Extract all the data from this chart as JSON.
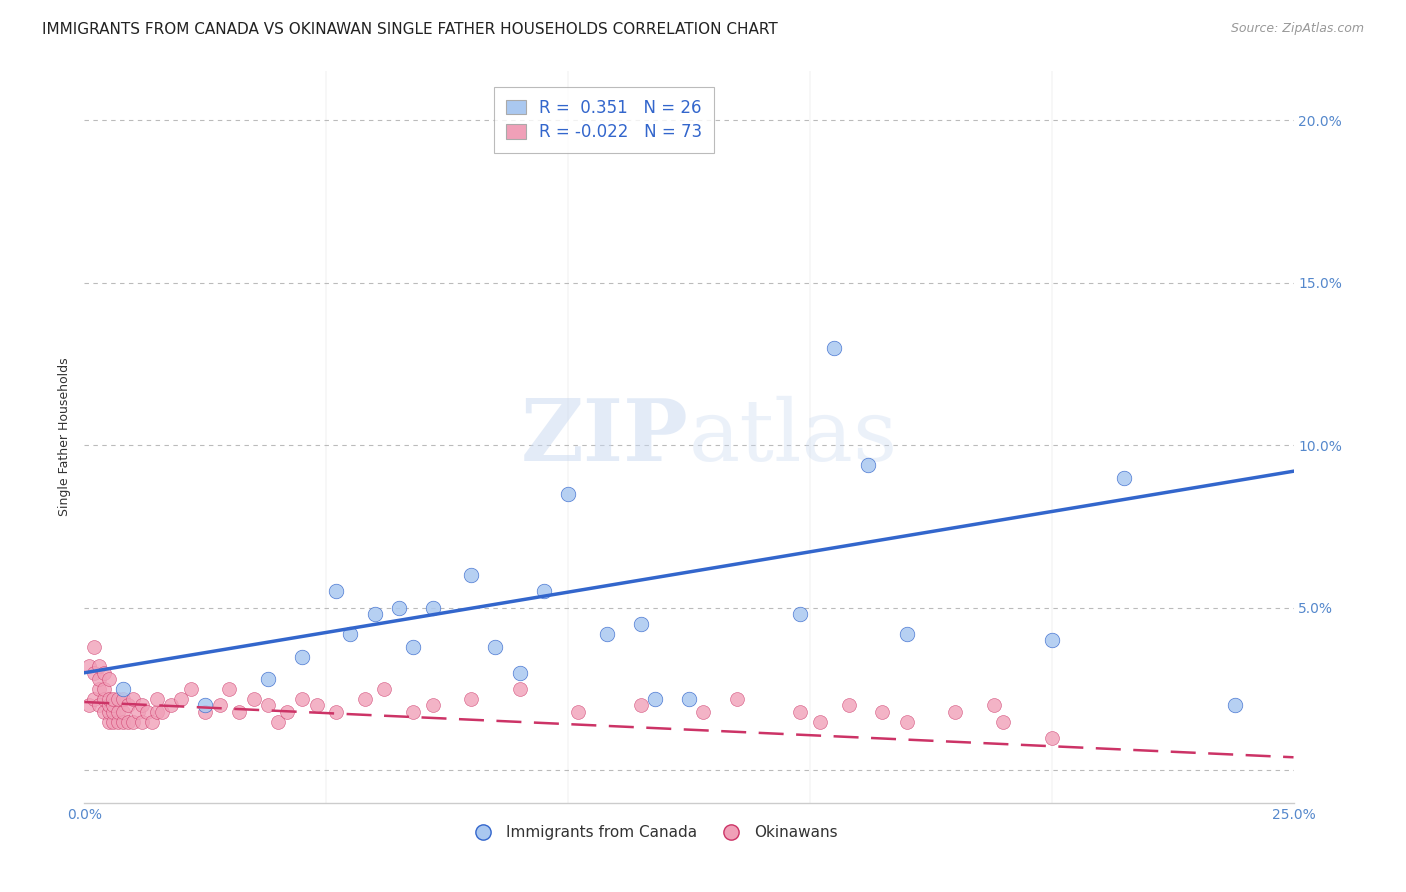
{
  "title": "IMMIGRANTS FROM CANADA VS OKINAWAN SINGLE FATHER HOUSEHOLDS CORRELATION CHART",
  "source": "Source: ZipAtlas.com",
  "ylabel": "Single Father Households",
  "xlim": [
    0.0,
    0.25
  ],
  "ylim": [
    -0.01,
    0.215
  ],
  "xticks": [
    0.0,
    0.05,
    0.1,
    0.15,
    0.2,
    0.25
  ],
  "xticklabels": [
    "0.0%",
    "",
    "",
    "",
    "",
    "25.0%"
  ],
  "yticks": [
    0.0,
    0.05,
    0.1,
    0.15,
    0.2
  ],
  "yticklabels_right": [
    "",
    "5.0%",
    "10.0%",
    "15.0%",
    "20.0%"
  ],
  "blue_R": 0.351,
  "blue_N": 26,
  "pink_R": -0.022,
  "pink_N": 73,
  "blue_color": "#aac8f0",
  "blue_line_color": "#3366cc",
  "pink_color": "#f0a0b8",
  "pink_line_color": "#cc3366",
  "watermark_zip": "ZIP",
  "watermark_atlas": "atlas",
  "grid_color": "#bbbbbb",
  "bg_color": "#ffffff",
  "title_fontsize": 11,
  "axis_label_fontsize": 9,
  "tick_fontsize": 10,
  "legend_fontsize": 12,
  "blue_points_x": [
    0.008,
    0.025,
    0.038,
    0.045,
    0.052,
    0.055,
    0.06,
    0.065,
    0.068,
    0.072,
    0.08,
    0.085,
    0.09,
    0.095,
    0.1,
    0.108,
    0.115,
    0.118,
    0.125,
    0.148,
    0.155,
    0.162,
    0.17,
    0.2,
    0.215,
    0.238
  ],
  "blue_points_y": [
    0.025,
    0.02,
    0.028,
    0.035,
    0.055,
    0.042,
    0.048,
    0.05,
    0.038,
    0.05,
    0.06,
    0.038,
    0.03,
    0.055,
    0.085,
    0.042,
    0.045,
    0.022,
    0.022,
    0.048,
    0.13,
    0.094,
    0.042,
    0.04,
    0.09,
    0.02
  ],
  "pink_points_x": [
    0.001,
    0.001,
    0.002,
    0.002,
    0.002,
    0.003,
    0.003,
    0.003,
    0.003,
    0.004,
    0.004,
    0.004,
    0.004,
    0.005,
    0.005,
    0.005,
    0.005,
    0.005,
    0.006,
    0.006,
    0.006,
    0.006,
    0.007,
    0.007,
    0.007,
    0.008,
    0.008,
    0.008,
    0.009,
    0.009,
    0.01,
    0.01,
    0.011,
    0.012,
    0.012,
    0.013,
    0.014,
    0.015,
    0.015,
    0.016,
    0.018,
    0.02,
    0.022,
    0.025,
    0.028,
    0.03,
    0.032,
    0.035,
    0.038,
    0.04,
    0.042,
    0.045,
    0.048,
    0.052,
    0.058,
    0.062,
    0.068,
    0.072,
    0.08,
    0.09,
    0.102,
    0.115,
    0.128,
    0.135,
    0.148,
    0.152,
    0.158,
    0.165,
    0.17,
    0.18,
    0.188,
    0.19,
    0.2
  ],
  "pink_points_y": [
    0.02,
    0.032,
    0.022,
    0.03,
    0.038,
    0.02,
    0.025,
    0.028,
    0.032,
    0.018,
    0.022,
    0.025,
    0.03,
    0.015,
    0.018,
    0.02,
    0.022,
    0.028,
    0.015,
    0.018,
    0.02,
    0.022,
    0.015,
    0.018,
    0.022,
    0.015,
    0.018,
    0.022,
    0.015,
    0.02,
    0.015,
    0.022,
    0.018,
    0.015,
    0.02,
    0.018,
    0.015,
    0.018,
    0.022,
    0.018,
    0.02,
    0.022,
    0.025,
    0.018,
    0.02,
    0.025,
    0.018,
    0.022,
    0.02,
    0.015,
    0.018,
    0.022,
    0.02,
    0.018,
    0.022,
    0.025,
    0.018,
    0.02,
    0.022,
    0.025,
    0.018,
    0.02,
    0.018,
    0.022,
    0.018,
    0.015,
    0.02,
    0.018,
    0.015,
    0.018,
    0.02,
    0.015,
    0.01
  ],
  "blue_line_x": [
    0.0,
    0.25
  ],
  "blue_line_y": [
    0.03,
    0.092
  ],
  "pink_line_x": [
    0.0,
    0.25
  ],
  "pink_line_y": [
    0.021,
    0.004
  ]
}
